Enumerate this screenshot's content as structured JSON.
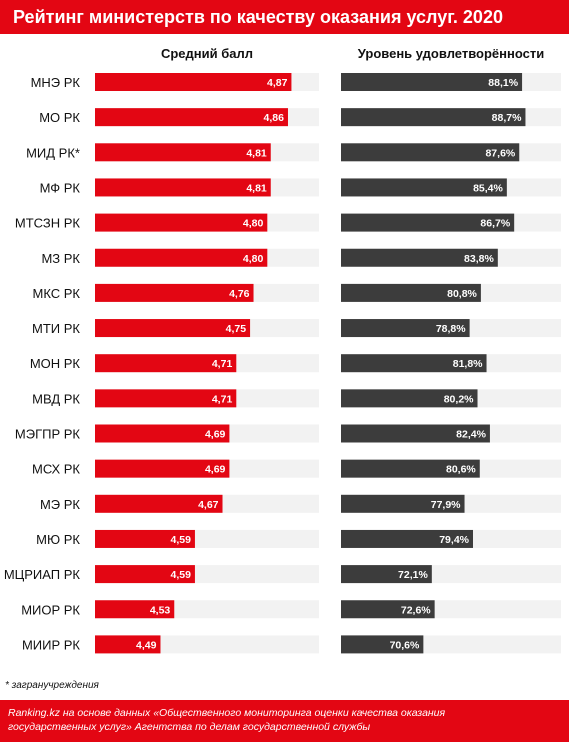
{
  "title": "Рейтинг министерств по качеству оказания услуг. 2020",
  "colors": {
    "accent": "#e30613",
    "dark_bar": "#3c3c3c",
    "track": "#f2f2f2"
  },
  "chart_data": [
    {
      "type": "bar",
      "orientation": "horizontal",
      "title": "Средний балл",
      "categories": [
        "МНЭ РК",
        "МО РК",
        "МИД РК*",
        "МФ РК",
        "МТСЗН РК",
        "МЗ РК",
        "МКС РК",
        "МТИ РК",
        "МОН РК",
        "МВД РК",
        "МЭГПР РК",
        "МСХ РК",
        "МЭ РК",
        "МЮ РК",
        "МЦРИАП РК",
        "МИОР РК",
        "МИИР РК"
      ],
      "values": [
        4.87,
        4.86,
        4.81,
        4.81,
        4.8,
        4.8,
        4.76,
        4.75,
        4.71,
        4.71,
        4.69,
        4.69,
        4.67,
        4.59,
        4.59,
        4.53,
        4.49
      ],
      "value_labels": [
        "4,87",
        "4,86",
        "4,81",
        "4,81",
        "4,80",
        "4,80",
        "4,76",
        "4,75",
        "4,71",
        "4,71",
        "4,69",
        "4,69",
        "4,67",
        "4,59",
        "4,59",
        "4,53",
        "4,49"
      ],
      "xlim": [
        4.3,
        4.95
      ],
      "grid": false,
      "bar_color": "#e30613"
    },
    {
      "type": "bar",
      "orientation": "horizontal",
      "title": "Уровень удовлетворённости",
      "categories": [
        "МНЭ РК",
        "МО РК",
        "МИД РК*",
        "МФ РК",
        "МТСЗН РК",
        "МЗ РК",
        "МКС РК",
        "МТИ РК",
        "МОН РК",
        "МВД РК",
        "МЭГПР РК",
        "МСХ РК",
        "МЭ РК",
        "МЮ РК",
        "МЦРИАП РК",
        "МИОР РК",
        "МИИР РК"
      ],
      "values": [
        88.1,
        88.7,
        87.6,
        85.4,
        86.7,
        83.8,
        80.8,
        78.8,
        81.8,
        80.2,
        82.4,
        80.6,
        77.9,
        79.4,
        72.1,
        72.6,
        70.6
      ],
      "value_labels": [
        "88,1%",
        "88,7%",
        "87,6%",
        "85,4%",
        "86,7%",
        "83,8%",
        "80,8%",
        "78,8%",
        "81,8%",
        "80,2%",
        "82,4%",
        "80,6%",
        "77,9%",
        "79,4%",
        "72,1%",
        "72,6%",
        "70,6%"
      ],
      "xlim": [
        56,
        95
      ],
      "grid": false,
      "bar_color": "#3c3c3c"
    }
  ],
  "footnote": "* загранучреждения",
  "source": {
    "line1": "Ranking.kz на основе данных «Общественного мониторинга оценки качества оказания",
    "line2": "государственных услуг» Агентства по делам государственной службы"
  }
}
